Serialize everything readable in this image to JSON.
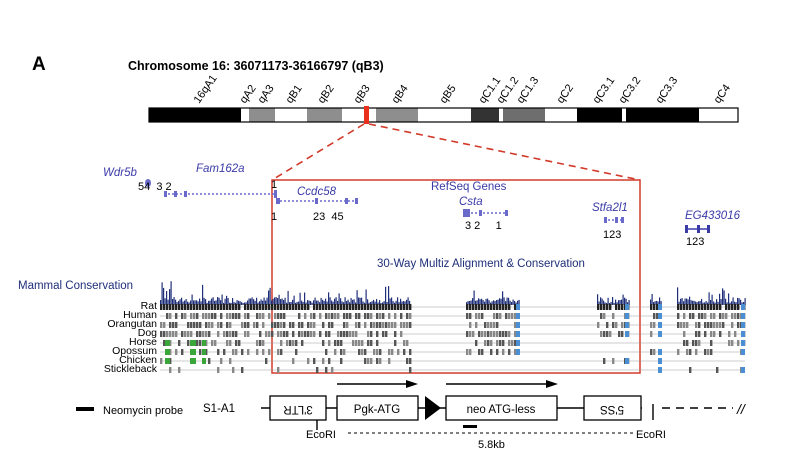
{
  "panel_label": "A",
  "title": "Chromosome 16: 36071173-36166797 (qB3)",
  "bands": [
    {
      "label": "16qA1",
      "shade": "black"
    },
    {
      "label": "qA2",
      "shade": "white"
    },
    {
      "label": "qA3",
      "shade": "gray"
    },
    {
      "label": "qB1",
      "shade": "white"
    },
    {
      "label": "qB2",
      "shade": "gray"
    },
    {
      "label": "qB3",
      "shade": "white"
    },
    {
      "label": "qB4",
      "shade": "gray"
    },
    {
      "label": "qB5",
      "shade": "white"
    },
    {
      "label": "qC1.1",
      "shade": "dark"
    },
    {
      "label": "qC1.2",
      "shade": "white"
    },
    {
      "label": "qC1.3",
      "shade": "gray"
    },
    {
      "label": "qC2",
      "shade": "white"
    },
    {
      "label": "qC3.1",
      "shade": "black"
    },
    {
      "label": "qC3.2",
      "shade": "white"
    },
    {
      "label": "qC3.3",
      "shade": "black"
    },
    {
      "label": "qC4",
      "shade": "white"
    }
  ],
  "refseq_label": "RefSeq Genes",
  "genes": {
    "wdr5b": {
      "name": "Wdr5b",
      "exons": "54  3 2"
    },
    "fam162a": {
      "name": "Fam162a",
      "exon_top": "1"
    },
    "ccdc58": {
      "name": "Ccdc58",
      "exon_left": "1",
      "exons": "23  45"
    },
    "csta": {
      "name": "Csta",
      "exons": "3 2     1"
    },
    "stfa2l1": {
      "name": "Stfa2l1",
      "exons": "123"
    },
    "eg433016": {
      "name": "EG433016",
      "exons": "123"
    }
  },
  "multiz_label": "30-Way Multiz Alignment & Conservation",
  "conservation_label": "Mammal Conservation",
  "species": [
    "Rat",
    "Human",
    "Orangutan",
    "Dog",
    "Horse",
    "Opossum",
    "Chicken",
    "Stickleback"
  ],
  "construct": {
    "name": "S1-A1",
    "ltr3": "3'LTR",
    "pgk": "Pgk-ATG",
    "neo": "neo ATG-less",
    "ss5": "5'SS",
    "ecori_left": "EcoRI",
    "ecori_right": "EcoRI",
    "distance": "5.8kb",
    "break_mark": "//"
  },
  "legend": {
    "probe": "Neomycin probe"
  },
  "colors": {
    "gene": "#3b3ba8",
    "conservation": "#1f2f7a",
    "zoom_box": "#d23a2a",
    "marker": "#e8301c",
    "highlight_blue": "#4a8fd4",
    "highlight_green": "#3aa63a"
  }
}
